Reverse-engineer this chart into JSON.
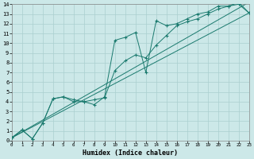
{
  "title": "",
  "xlabel": "Humidex (Indice chaleur)",
  "background_color": "#cce8e8",
  "grid_color": "#aacfcf",
  "line_color": "#1a7a6e",
  "xlim": [
    0,
    23
  ],
  "ylim": [
    0,
    14
  ],
  "xticks": [
    0,
    1,
    2,
    3,
    4,
    5,
    6,
    7,
    8,
    9,
    10,
    11,
    12,
    13,
    14,
    15,
    16,
    17,
    18,
    19,
    20,
    21,
    22,
    23
  ],
  "yticks": [
    0,
    1,
    2,
    3,
    4,
    5,
    6,
    7,
    8,
    9,
    10,
    11,
    12,
    13,
    14
  ],
  "line1_x": [
    0,
    1,
    2,
    3,
    4,
    5,
    6,
    7,
    8,
    9,
    10,
    11,
    12,
    13,
    14,
    15,
    16,
    17,
    18,
    19,
    20,
    21,
    22,
    23
  ],
  "line1_y": [
    0.3,
    1.1,
    0.2,
    1.8,
    4.3,
    4.5,
    4.0,
    4.0,
    3.7,
    4.5,
    10.3,
    10.6,
    11.1,
    7.0,
    12.3,
    11.8,
    12.0,
    12.5,
    13.0,
    13.2,
    13.8,
    13.8,
    14.2,
    13.1
  ],
  "line2_x": [
    0,
    1,
    2,
    3,
    4,
    5,
    6,
    7,
    8,
    9,
    10,
    11,
    12,
    13,
    14,
    15,
    16,
    17,
    18,
    19,
    20,
    21,
    22,
    23
  ],
  "line2_y": [
    0.3,
    1.1,
    0.2,
    1.8,
    4.3,
    4.5,
    4.2,
    4.0,
    4.2,
    4.4,
    7.2,
    8.2,
    8.8,
    8.5,
    9.8,
    10.8,
    11.8,
    12.2,
    12.5,
    13.0,
    13.5,
    13.8,
    14.0,
    13.1
  ],
  "line3_x": [
    0,
    23
  ],
  "line3_y": [
    0.3,
    13.1
  ],
  "line4_x": [
    0,
    23
  ],
  "line4_y": [
    0.3,
    14.2
  ]
}
